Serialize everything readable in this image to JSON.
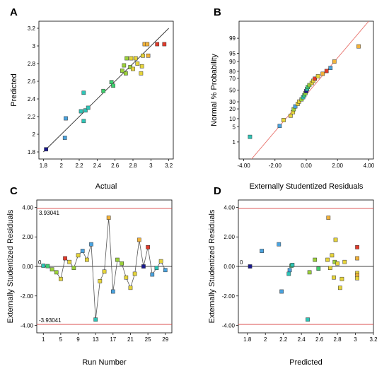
{
  "chart_data": [
    {
      "panel": "A",
      "type": "scatter",
      "title": "",
      "xlabel": "Actual",
      "ylabel": "Predicted",
      "xlim": [
        1.75,
        3.25
      ],
      "ylim": [
        1.72,
        3.28
      ],
      "xticks": [
        "1.8",
        "2",
        "2.2",
        "2.4",
        "2.6",
        "2.8",
        "3",
        "3.2"
      ],
      "yticks": [
        "1.8",
        "2",
        "2.2",
        "2.4",
        "2.6",
        "2.8",
        "3",
        "3.2"
      ],
      "reference_line": [
        [
          1.8,
          1.8
        ],
        [
          3.2,
          3.2
        ]
      ],
      "colors": [
        "#1a1a8c",
        "#4aa3df",
        "#2ec4b6",
        "#3ecf6e",
        "#9bd13a",
        "#e6d43a",
        "#f2b23a",
        "#e23a2a"
      ],
      "points": [
        {
          "x": 1.83,
          "y": 1.83,
          "c": 0
        },
        {
          "x": 2.04,
          "y": 1.96,
          "c": 1
        },
        {
          "x": 2.05,
          "y": 2.18,
          "c": 1
        },
        {
          "x": 2.22,
          "y": 2.26,
          "c": 2
        },
        {
          "x": 2.25,
          "y": 2.15,
          "c": 2
        },
        {
          "x": 2.25,
          "y": 2.47,
          "c": 2
        },
        {
          "x": 2.27,
          "y": 2.27,
          "c": 2
        },
        {
          "x": 2.3,
          "y": 2.3,
          "c": 2
        },
        {
          "x": 2.47,
          "y": 2.49,
          "c": 3
        },
        {
          "x": 2.56,
          "y": 2.59,
          "c": 3
        },
        {
          "x": 2.58,
          "y": 2.55,
          "c": 3
        },
        {
          "x": 2.68,
          "y": 2.72,
          "c": 4
        },
        {
          "x": 2.7,
          "y": 2.78,
          "c": 4
        },
        {
          "x": 2.72,
          "y": 2.69,
          "c": 4
        },
        {
          "x": 2.73,
          "y": 2.86,
          "c": 4
        },
        {
          "x": 2.77,
          "y": 2.76,
          "c": 4
        },
        {
          "x": 2.78,
          "y": 2.86,
          "c": 5
        },
        {
          "x": 2.8,
          "y": 2.74,
          "c": 5
        },
        {
          "x": 2.83,
          "y": 2.86,
          "c": 5
        },
        {
          "x": 2.85,
          "y": 2.8,
          "c": 5
        },
        {
          "x": 2.89,
          "y": 2.69,
          "c": 5
        },
        {
          "x": 2.9,
          "y": 2.77,
          "c": 5
        },
        {
          "x": 2.91,
          "y": 2.89,
          "c": 5
        },
        {
          "x": 2.93,
          "y": 3.02,
          "c": 6
        },
        {
          "x": 2.96,
          "y": 3.02,
          "c": 6
        },
        {
          "x": 2.97,
          "y": 2.89,
          "c": 6
        },
        {
          "x": 3.07,
          "y": 3.02,
          "c": 7
        },
        {
          "x": 3.15,
          "y": 3.02,
          "c": 7
        }
      ]
    },
    {
      "panel": "B",
      "type": "scatter",
      "title": "",
      "xlabel": "Externally Studentized Residuals",
      "ylabel": "Normal % Probability",
      "xlim": [
        -4.3,
        4.3
      ],
      "ylim_probability": [
        0.1,
        99.9
      ],
      "xticks": [
        "-4.00",
        "-2.00",
        "0.00",
        "2.00",
        "4.00"
      ],
      "yticks": [
        "1",
        "5",
        "10",
        "20",
        "30",
        "50",
        "70",
        "80",
        "90",
        "95",
        "99"
      ],
      "reference_line": [
        [
          -3.5,
          0.1
        ],
        [
          4.0,
          99.9
        ]
      ],
      "colors": [
        "#1a1a8c",
        "#4aa3df",
        "#2ec4b6",
        "#3ecf6e",
        "#9bd13a",
        "#e6d43a",
        "#f2b23a",
        "#e23a2a"
      ],
      "points": [
        {
          "x": -3.6,
          "y": 1.8,
          "c": 2
        },
        {
          "x": -1.7,
          "y": 5.4,
          "c": 1
        },
        {
          "x": -1.45,
          "y": 8.9,
          "c": 5
        },
        {
          "x": -1.0,
          "y": 12.5,
          "c": 5
        },
        {
          "x": -0.85,
          "y": 16.1,
          "c": 5
        },
        {
          "x": -0.8,
          "y": 19.6,
          "c": 4
        },
        {
          "x": -0.7,
          "y": 23.2,
          "c": 1
        },
        {
          "x": -0.55,
          "y": 26.8,
          "c": 5
        },
        {
          "x": -0.45,
          "y": 30.4,
          "c": 5
        },
        {
          "x": -0.3,
          "y": 33.9,
          "c": 4
        },
        {
          "x": -0.2,
          "y": 37.5,
          "c": 2
        },
        {
          "x": -0.12,
          "y": 41.1,
          "c": 3
        },
        {
          "x": -0.05,
          "y": 44.6,
          "c": 4
        },
        {
          "x": 0.0,
          "y": 48.2,
          "c": 0
        },
        {
          "x": 0.05,
          "y": 51.8,
          "c": 2
        },
        {
          "x": 0.1,
          "y": 55.4,
          "c": 3
        },
        {
          "x": 0.2,
          "y": 58.9,
          "c": 4
        },
        {
          "x": 0.35,
          "y": 62.5,
          "c": 5
        },
        {
          "x": 0.45,
          "y": 66.1,
          "c": 5
        },
        {
          "x": 0.55,
          "y": 69.6,
          "c": 7
        },
        {
          "x": 0.75,
          "y": 73.2,
          "c": 5
        },
        {
          "x": 1.05,
          "y": 76.8,
          "c": 6
        },
        {
          "x": 1.3,
          "y": 80.4,
          "c": 7
        },
        {
          "x": 1.55,
          "y": 84.0,
          "c": 1
        },
        {
          "x": 1.8,
          "y": 90.0,
          "c": 6
        },
        {
          "x": 3.35,
          "y": 97.5,
          "c": 6
        }
      ]
    },
    {
      "panel": "C",
      "type": "line",
      "title": "",
      "xlabel": "Run Number",
      "ylabel": "Externally Studentized Residuals",
      "xlim": [
        -0.5,
        30.5
      ],
      "ylim": [
        -4.5,
        4.5
      ],
      "xticks": [
        "1",
        "5",
        "9",
        "13",
        "17",
        "21",
        "25",
        "29"
      ],
      "yticks": [
        "4.00",
        "2.00",
        "0.00",
        "-2.00",
        "-4.00"
      ],
      "limits": {
        "upper": 3.93041,
        "lower": -3.93041,
        "upper_label": "3.93041",
        "lower_label": "-3.93041"
      },
      "zero_label": "0",
      "colors": [
        "#1a1a8c",
        "#4aa3df",
        "#2ec4b6",
        "#3ecf6e",
        "#9bd13a",
        "#e6d43a",
        "#f2b23a",
        "#e23a2a"
      ],
      "points": [
        {
          "x": 1,
          "y": 0.05,
          "c": 2
        },
        {
          "x": 2,
          "y": 0.02,
          "c": 3
        },
        {
          "x": 3,
          "y": -0.2,
          "c": 4
        },
        {
          "x": 4,
          "y": -0.4,
          "c": 4
        },
        {
          "x": 5,
          "y": -0.85,
          "c": 5
        },
        {
          "x": 6,
          "y": 0.55,
          "c": 7
        },
        {
          "x": 7,
          "y": 0.3,
          "c": 5
        },
        {
          "x": 8,
          "y": -0.1,
          "c": 4
        },
        {
          "x": 9,
          "y": 0.75,
          "c": 5
        },
        {
          "x": 10,
          "y": 1.05,
          "c": 1
        },
        {
          "x": 11,
          "y": 0.45,
          "c": 5
        },
        {
          "x": 12,
          "y": 1.5,
          "c": 1
        },
        {
          "x": 13,
          "y": -3.6,
          "c": 2
        },
        {
          "x": 14,
          "y": -1.0,
          "c": 5
        },
        {
          "x": 15,
          "y": -0.35,
          "c": 5
        },
        {
          "x": 16,
          "y": 3.3,
          "c": 6
        },
        {
          "x": 17,
          "y": -1.7,
          "c": 1
        },
        {
          "x": 18,
          "y": 0.45,
          "c": 4
        },
        {
          "x": 19,
          "y": 0.2,
          "c": 4
        },
        {
          "x": 20,
          "y": -0.75,
          "c": 5
        },
        {
          "x": 21,
          "y": -1.45,
          "c": 5
        },
        {
          "x": 22,
          "y": -0.5,
          "c": 5
        },
        {
          "x": 23,
          "y": 1.8,
          "c": 6
        },
        {
          "x": 24,
          "y": 0.0,
          "c": 0
        },
        {
          "x": 25,
          "y": 1.3,
          "c": 7
        },
        {
          "x": 26,
          "y": -0.55,
          "c": 1
        },
        {
          "x": 27,
          "y": -0.1,
          "c": 2
        },
        {
          "x": 28,
          "y": 0.35,
          "c": 5
        },
        {
          "x": 29,
          "y": -0.25,
          "c": 1
        }
      ]
    },
    {
      "panel": "D",
      "type": "scatter",
      "title": "",
      "xlabel": "Predicted",
      "ylabel": "Externally Studentized Residuals",
      "xlim": [
        1.7,
        3.2
      ],
      "ylim": [
        -4.5,
        4.5
      ],
      "xticks": [
        "1.8",
        "2",
        "2.2",
        "2.4",
        "2.6",
        "2.8",
        "3",
        "3.2"
      ],
      "yticks": [
        "4.00",
        "2.00",
        "0.00",
        "-2.00",
        "-4.00"
      ],
      "limits": {
        "upper": 3.93041,
        "lower": -3.93041
      },
      "zero_label": "0",
      "colors": [
        "#1a1a8c",
        "#4aa3df",
        "#2ec4b6",
        "#3ecf6e",
        "#9bd13a",
        "#e6d43a",
        "#f2b23a",
        "#e23a2a"
      ],
      "points": [
        {
          "x": 1.83,
          "y": 0.0,
          "c": 0
        },
        {
          "x": 1.96,
          "y": 1.05,
          "c": 1
        },
        {
          "x": 2.15,
          "y": 1.5,
          "c": 1
        },
        {
          "x": 2.18,
          "y": -1.7,
          "c": 1
        },
        {
          "x": 2.26,
          "y": -0.5,
          "c": 2
        },
        {
          "x": 2.27,
          "y": -0.25,
          "c": 1
        },
        {
          "x": 2.29,
          "y": 0.05,
          "c": 3
        },
        {
          "x": 2.3,
          "y": 0.1,
          "c": 2
        },
        {
          "x": 2.47,
          "y": -3.6,
          "c": 2
        },
        {
          "x": 2.49,
          "y": -0.4,
          "c": 4
        },
        {
          "x": 2.55,
          "y": 0.45,
          "c": 4
        },
        {
          "x": 2.59,
          "y": -0.15,
          "c": 3
        },
        {
          "x": 2.69,
          "y": 0.45,
          "c": 5
        },
        {
          "x": 2.7,
          "y": 3.3,
          "c": 6
        },
        {
          "x": 2.72,
          "y": -0.1,
          "c": 5
        },
        {
          "x": 2.74,
          "y": 0.75,
          "c": 5
        },
        {
          "x": 2.76,
          "y": -0.75,
          "c": 5
        },
        {
          "x": 2.77,
          "y": 0.3,
          "c": 4
        },
        {
          "x": 2.78,
          "y": 1.8,
          "c": 5
        },
        {
          "x": 2.8,
          "y": 0.2,
          "c": 5
        },
        {
          "x": 2.83,
          "y": -1.45,
          "c": 5
        },
        {
          "x": 2.85,
          "y": -0.85,
          "c": 5
        },
        {
          "x": 2.88,
          "y": 0.3,
          "c": 5
        },
        {
          "x": 3.02,
          "y": 1.3,
          "c": 7
        },
        {
          "x": 3.02,
          "y": 0.55,
          "c": 6
        },
        {
          "x": 3.02,
          "y": -0.45,
          "c": 5
        },
        {
          "x": 3.02,
          "y": -0.6,
          "c": 6
        },
        {
          "x": 3.02,
          "y": -0.8,
          "c": 5
        }
      ]
    }
  ]
}
